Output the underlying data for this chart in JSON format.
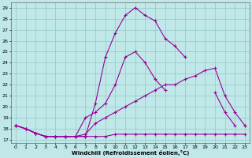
{
  "xlabel": "Windchill (Refroidissement éolien,°C)",
  "xlim": [
    -0.5,
    23.5
  ],
  "ylim": [
    16.7,
    29.5
  ],
  "yticks": [
    17,
    18,
    19,
    20,
    21,
    22,
    23,
    24,
    25,
    26,
    27,
    28,
    29
  ],
  "xticks": [
    0,
    1,
    2,
    3,
    4,
    5,
    6,
    7,
    8,
    9,
    10,
    11,
    12,
    13,
    14,
    15,
    16,
    17,
    18,
    19,
    20,
    21,
    22,
    23
  ],
  "bg_color": "#c0e8e8",
  "grid_color": "#99cccc",
  "line_color": "#990099",
  "lines": [
    {
      "x": [
        0,
        1,
        2,
        3,
        4,
        5,
        6,
        7,
        8,
        9,
        10,
        11,
        12,
        13,
        14,
        15,
        16,
        17,
        18,
        19,
        20,
        21,
        22,
        23
      ],
      "y": [
        18.3,
        18.0,
        17.6,
        17.3,
        17.3,
        17.3,
        17.3,
        17.3,
        17.3,
        17.3,
        17.5,
        17.5,
        17.5,
        17.5,
        17.5,
        17.5,
        17.5,
        17.5,
        17.5,
        17.5,
        17.5,
        17.5,
        17.5,
        17.5
      ]
    },
    {
      "x": [
        0,
        1,
        2,
        3,
        4,
        5,
        6,
        7,
        8,
        9,
        10,
        11,
        12,
        13,
        14,
        15,
        16,
        17,
        18,
        19,
        20,
        21,
        22,
        23
      ],
      "y": [
        18.3,
        18.0,
        17.6,
        17.3,
        17.3,
        17.3,
        17.3,
        17.5,
        18.5,
        19.0,
        19.5,
        20.0,
        20.5,
        21.0,
        21.5,
        22.0,
        22.0,
        22.5,
        22.8,
        23.3,
        23.5,
        21.0,
        19.5,
        18.3
      ]
    },
    {
      "x": [
        0,
        1,
        2,
        3,
        4,
        5,
        6,
        7,
        8,
        9,
        10,
        11,
        12,
        13,
        14,
        15,
        16,
        17,
        18,
        19,
        20,
        21,
        22,
        23
      ],
      "y": [
        18.3,
        18.0,
        17.6,
        17.3,
        17.3,
        17.3,
        17.3,
        19.0,
        19.5,
        20.3,
        22.0,
        24.5,
        25.0,
        24.0,
        22.5,
        21.5,
        null,
        null,
        null,
        null,
        21.3,
        19.5,
        18.3,
        null
      ]
    },
    {
      "x": [
        0,
        1,
        2,
        3,
        4,
        5,
        6,
        7,
        8,
        9,
        10,
        11,
        12,
        13,
        14,
        15,
        16,
        17,
        18,
        19,
        20,
        21,
        22,
        23
      ],
      "y": [
        18.3,
        18.0,
        17.6,
        17.3,
        17.3,
        17.3,
        17.3,
        17.3,
        20.3,
        24.5,
        26.7,
        28.3,
        29.0,
        28.3,
        27.8,
        26.2,
        25.5,
        24.5,
        null,
        null,
        null,
        null,
        null,
        18.3
      ]
    }
  ]
}
